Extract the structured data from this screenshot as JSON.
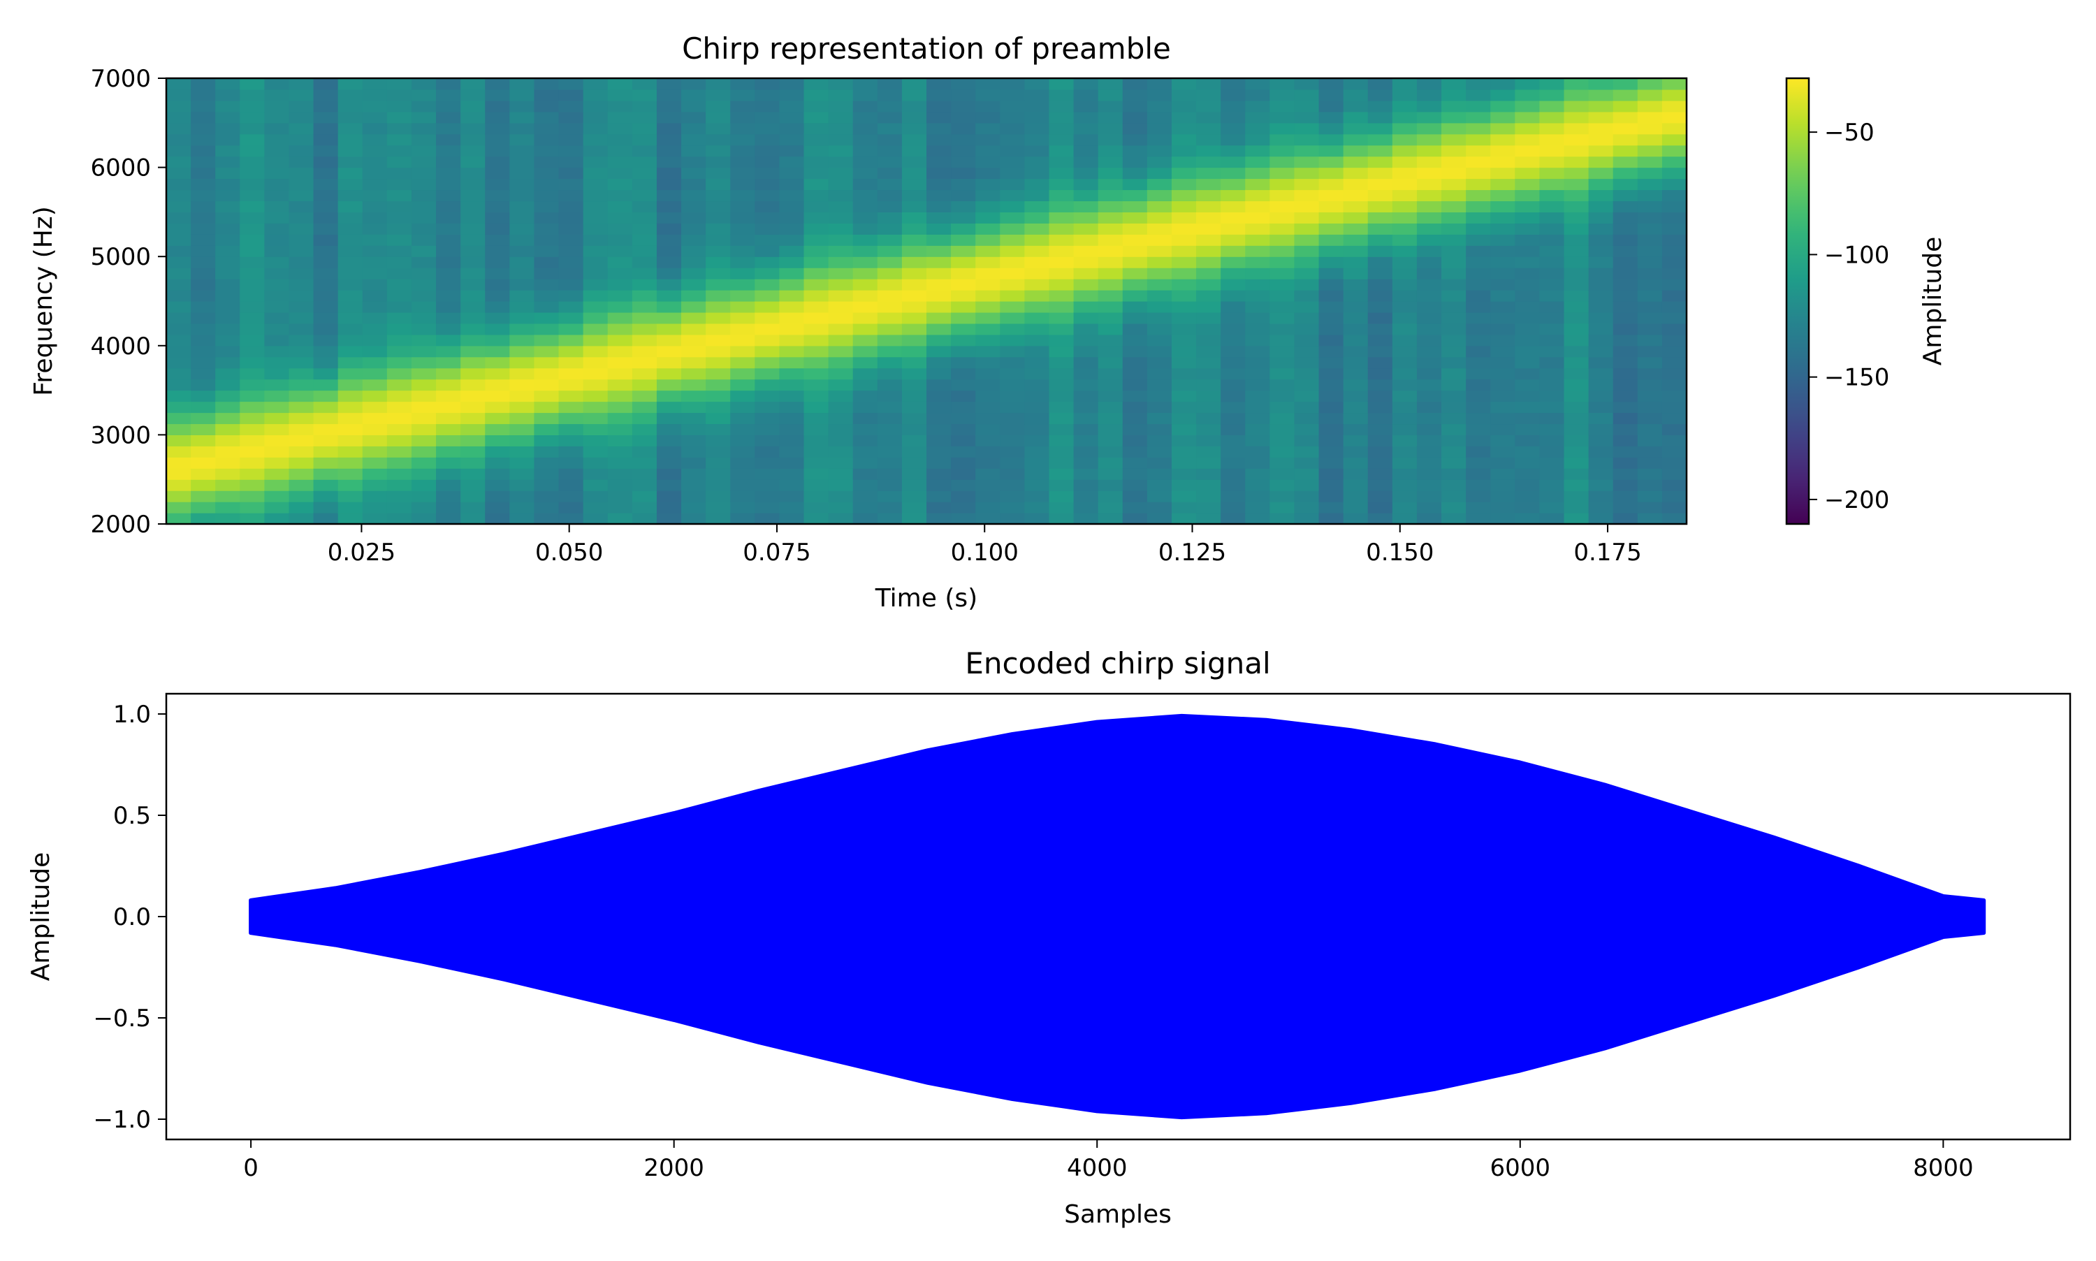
{
  "chart_data": [
    {
      "type": "heatmap",
      "title": "Chirp representation of preamble",
      "xlabel": "Time (s)",
      "ylabel": "Frequency (Hz)",
      "xlim": [
        0.0015,
        0.1845
      ],
      "ylim": [
        2000,
        7000
      ],
      "xticks": [
        0.025,
        0.05,
        0.075,
        0.1,
        0.125,
        0.15,
        0.175
      ],
      "xtick_labels": [
        "0.025",
        "0.050",
        "0.075",
        "0.100",
        "0.125",
        "0.150",
        "0.175"
      ],
      "yticks": [
        2000,
        3000,
        4000,
        5000,
        6000,
        7000
      ],
      "ytick_labels": [
        "2000",
        "3000",
        "4000",
        "5000",
        "6000",
        "7000"
      ],
      "colormap": "viridis",
      "colorbar": {
        "label": "Amplitude",
        "range": [
          -210,
          -28
        ],
        "ticks": [
          -50,
          -100,
          -150,
          -200
        ],
        "tick_labels": [
          "−50",
          "−100",
          "−150",
          "−200"
        ]
      },
      "ridge": {
        "start_time": 0.0015,
        "start_freq": 2600,
        "end_time": 0.1845,
        "end_freq": 6600,
        "peak_amplitude": -30
      },
      "background_amplitude": [
        -150,
        -110
      ],
      "grid": false
    },
    {
      "type": "area",
      "title": "Encoded chirp signal",
      "xlabel": "Samples",
      "ylabel": "Amplitude",
      "xlim": [
        -400,
        8600
      ],
      "ylim": [
        -1.1,
        1.1
      ],
      "xticks": [
        0,
        2000,
        4000,
        6000,
        8000
      ],
      "xtick_labels": [
        "0",
        "2000",
        "4000",
        "6000",
        "8000"
      ],
      "yticks": [
        1.0,
        0.5,
        0.0,
        -0.5,
        -1.0
      ],
      "ytick_labels": [
        "1.0",
        "0.5",
        "0.0",
        "−0.5",
        "−1.0"
      ],
      "series": [
        {
          "color": "#0000ff",
          "x": [
            0,
            400,
            800,
            1200,
            1600,
            2000,
            2400,
            2800,
            3200,
            3600,
            4000,
            4400,
            4800,
            5200,
            5600,
            6000,
            6400,
            6800,
            7200,
            7600,
            8000,
            8191
          ],
          "envelope": [
            0.08,
            0.14,
            0.22,
            0.31,
            0.41,
            0.51,
            0.62,
            0.72,
            0.82,
            0.9,
            0.96,
            0.99,
            0.97,
            0.92,
            0.85,
            0.76,
            0.65,
            0.52,
            0.39,
            0.25,
            0.1,
            0.08
          ]
        }
      ],
      "grid": false
    }
  ]
}
